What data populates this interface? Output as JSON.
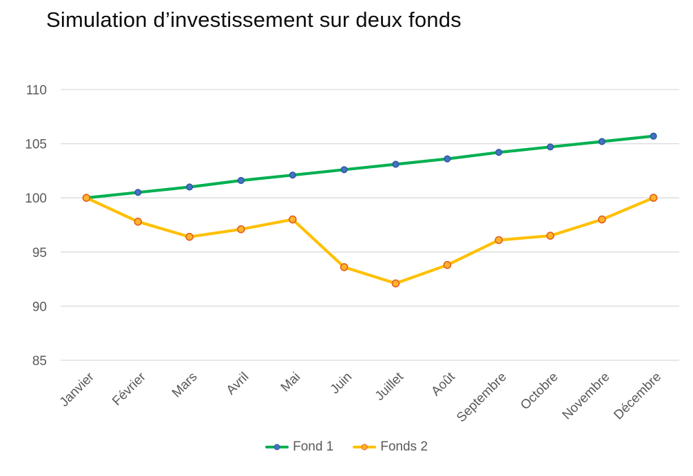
{
  "chart_data": {
    "type": "line",
    "title": "Simulation d’investissement sur deux fonds",
    "categories": [
      "Janvier",
      "Février",
      "Mars",
      "Avril",
      "Mai",
      "Juin",
      "Juillet",
      "Août",
      "Septembre",
      "Octobre",
      "Novembre",
      "Décembre"
    ],
    "series": [
      {
        "name": "Fond 1",
        "line_color": "#00B050",
        "marker_fill": "#4472C4",
        "marker_stroke": "#2E5A9E",
        "values": [
          100,
          100.5,
          101,
          101.6,
          102.1,
          102.6,
          103.1,
          103.6,
          104.2,
          104.7,
          105.2,
          105.7
        ]
      },
      {
        "name": "Fonds 2",
        "line_color": "#FFC000",
        "marker_fill": "#FFB32B",
        "marker_stroke": "#E15E1D",
        "values": [
          100,
          97.8,
          96.4,
          97.1,
          98,
          93.6,
          92.1,
          93.8,
          96.1,
          96.5,
          98,
          100
        ]
      }
    ],
    "ylim": [
      85,
      110
    ],
    "yticks": [
      110,
      105,
      100,
      95,
      90,
      85
    ],
    "grid": "horizontal",
    "legend_position": "bottom"
  },
  "colors": {
    "background": "#FFFFFF",
    "gridline": "#D9D9D9",
    "axis_text": "#595959",
    "title_text": "#0D0D0D"
  }
}
